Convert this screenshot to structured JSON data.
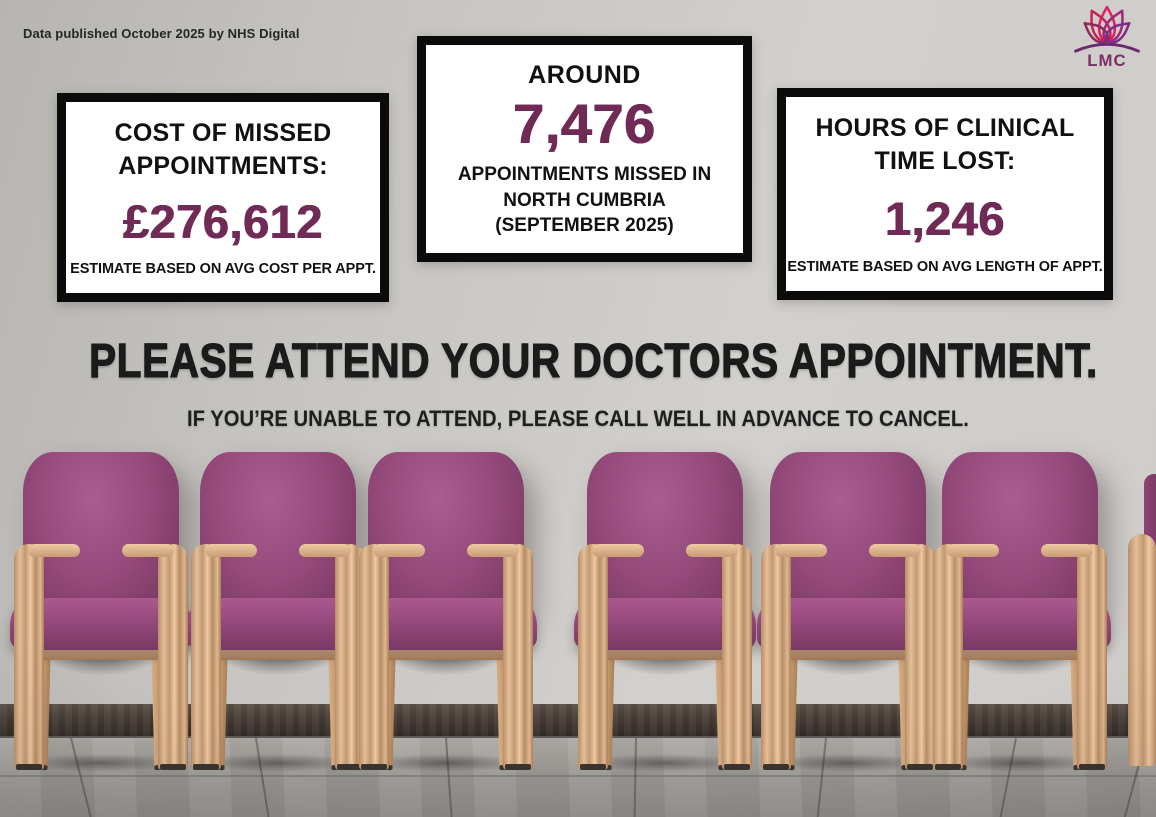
{
  "poster": {
    "source_note": "Data published October 2025 by NHS Digital",
    "logo": {
      "icon": "lotus-flower-icon",
      "text": "LMC"
    },
    "stats": [
      {
        "title_lines": [
          "COST OF MISSED",
          "APPOINTMENTS:"
        ],
        "value": "£276,612",
        "caption": "ESTIMATE BASED ON AVG COST PER APPT."
      },
      {
        "pre": "AROUND",
        "value": "7,476",
        "caption_lines": [
          "APPOINTMENTS MISSED IN",
          "NORTH CUMBRIA",
          "(SEPTEMBER 2025)"
        ]
      },
      {
        "title_lines": [
          "HOURS OF CLINICAL",
          "TIME LOST:"
        ],
        "value": "1,246",
        "caption": "ESTIMATE BASED ON AVG LENGTH OF APPT."
      }
    ],
    "headline": "PLEASE ATTEND YOUR DOCTORS APPOINTMENT.",
    "subheadline": "IF YOU’RE UNABLE TO ATTEND, PLEASE CALL WELL IN ADVANCE TO CANCEL.",
    "colors": {
      "accent_purple": "#6f2b55",
      "box_border": "#0b0b0b",
      "box_background": "#ffffff",
      "headline_text": "#1b1b1b",
      "chair_upholstery": "#94487a",
      "wood_frame": "#d3a87f",
      "wall_grey": "#cfcdca"
    }
  }
}
